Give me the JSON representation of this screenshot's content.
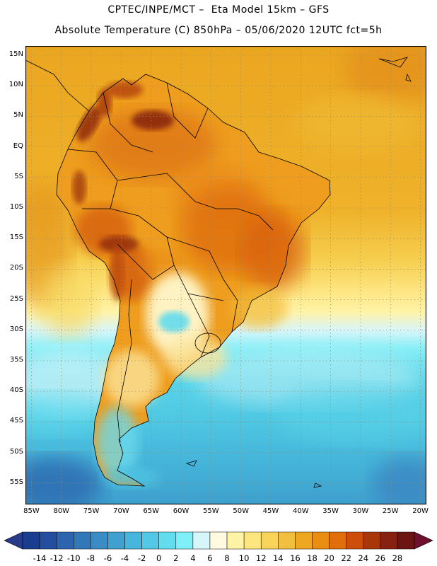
{
  "header": {
    "line1": "CPTEC/INPE/MCT –  Eta Model 15km – GFS",
    "line2": "Absolute Temperature (C) 850hPa – 05/06/2020 12UTC fct=5h"
  },
  "map": {
    "lon_range": [
      -86,
      -19
    ],
    "lat_range": [
      -58.5,
      16.5
    ],
    "lat_labels": [
      {
        "v": 15,
        "t": "15N"
      },
      {
        "v": 10,
        "t": "10N"
      },
      {
        "v": 5,
        "t": "5N"
      },
      {
        "v": 0,
        "t": "EQ"
      },
      {
        "v": -5,
        "t": "5S"
      },
      {
        "v": -10,
        "t": "10S"
      },
      {
        "v": -15,
        "t": "15S"
      },
      {
        "v": -20,
        "t": "20S"
      },
      {
        "v": -25,
        "t": "25S"
      },
      {
        "v": -30,
        "t": "30S"
      },
      {
        "v": -35,
        "t": "35S"
      },
      {
        "v": -40,
        "t": "40S"
      },
      {
        "v": -45,
        "t": "45S"
      },
      {
        "v": -50,
        "t": "50S"
      },
      {
        "v": -55,
        "t": "55S"
      }
    ],
    "lon_labels": [
      {
        "v": -85,
        "t": "85W"
      },
      {
        "v": -80,
        "t": "80W"
      },
      {
        "v": -75,
        "t": "75W"
      },
      {
        "v": -70,
        "t": "70W"
      },
      {
        "v": -65,
        "t": "65W"
      },
      {
        "v": -60,
        "t": "60W"
      },
      {
        "v": -55,
        "t": "55W"
      },
      {
        "v": -50,
        "t": "50W"
      },
      {
        "v": -45,
        "t": "45W"
      },
      {
        "v": -40,
        "t": "40W"
      },
      {
        "v": -35,
        "t": "35W"
      },
      {
        "v": -30,
        "t": "30W"
      },
      {
        "v": -25,
        "t": "25W"
      },
      {
        "v": -20,
        "t": "20W"
      }
    ]
  },
  "colorbar": {
    "labels": [
      "-14",
      "-12",
      "-10",
      "-8",
      "-6",
      "-4",
      "-2",
      "0",
      "2",
      "4",
      "6",
      "8",
      "10",
      "12",
      "14",
      "16",
      "18",
      "20",
      "22",
      "24",
      "26",
      "28"
    ],
    "colors": [
      "#1a3d8f",
      "#234f9e",
      "#2c64ae",
      "#3278b8",
      "#3a8cc4",
      "#40a0d0",
      "#48b6dc",
      "#52c8e6",
      "#62dcee",
      "#7ff0f8",
      "#d6f6fa",
      "#fffae0",
      "#fff3a6",
      "#fde680",
      "#f8d45a",
      "#f2c040",
      "#eea720",
      "#e98e12",
      "#e06e0a",
      "#cc4e08",
      "#a73609",
      "#872212",
      "#6b1412"
    ],
    "low_color": "#283a8a",
    "high_color": "#6e0f2c"
  }
}
